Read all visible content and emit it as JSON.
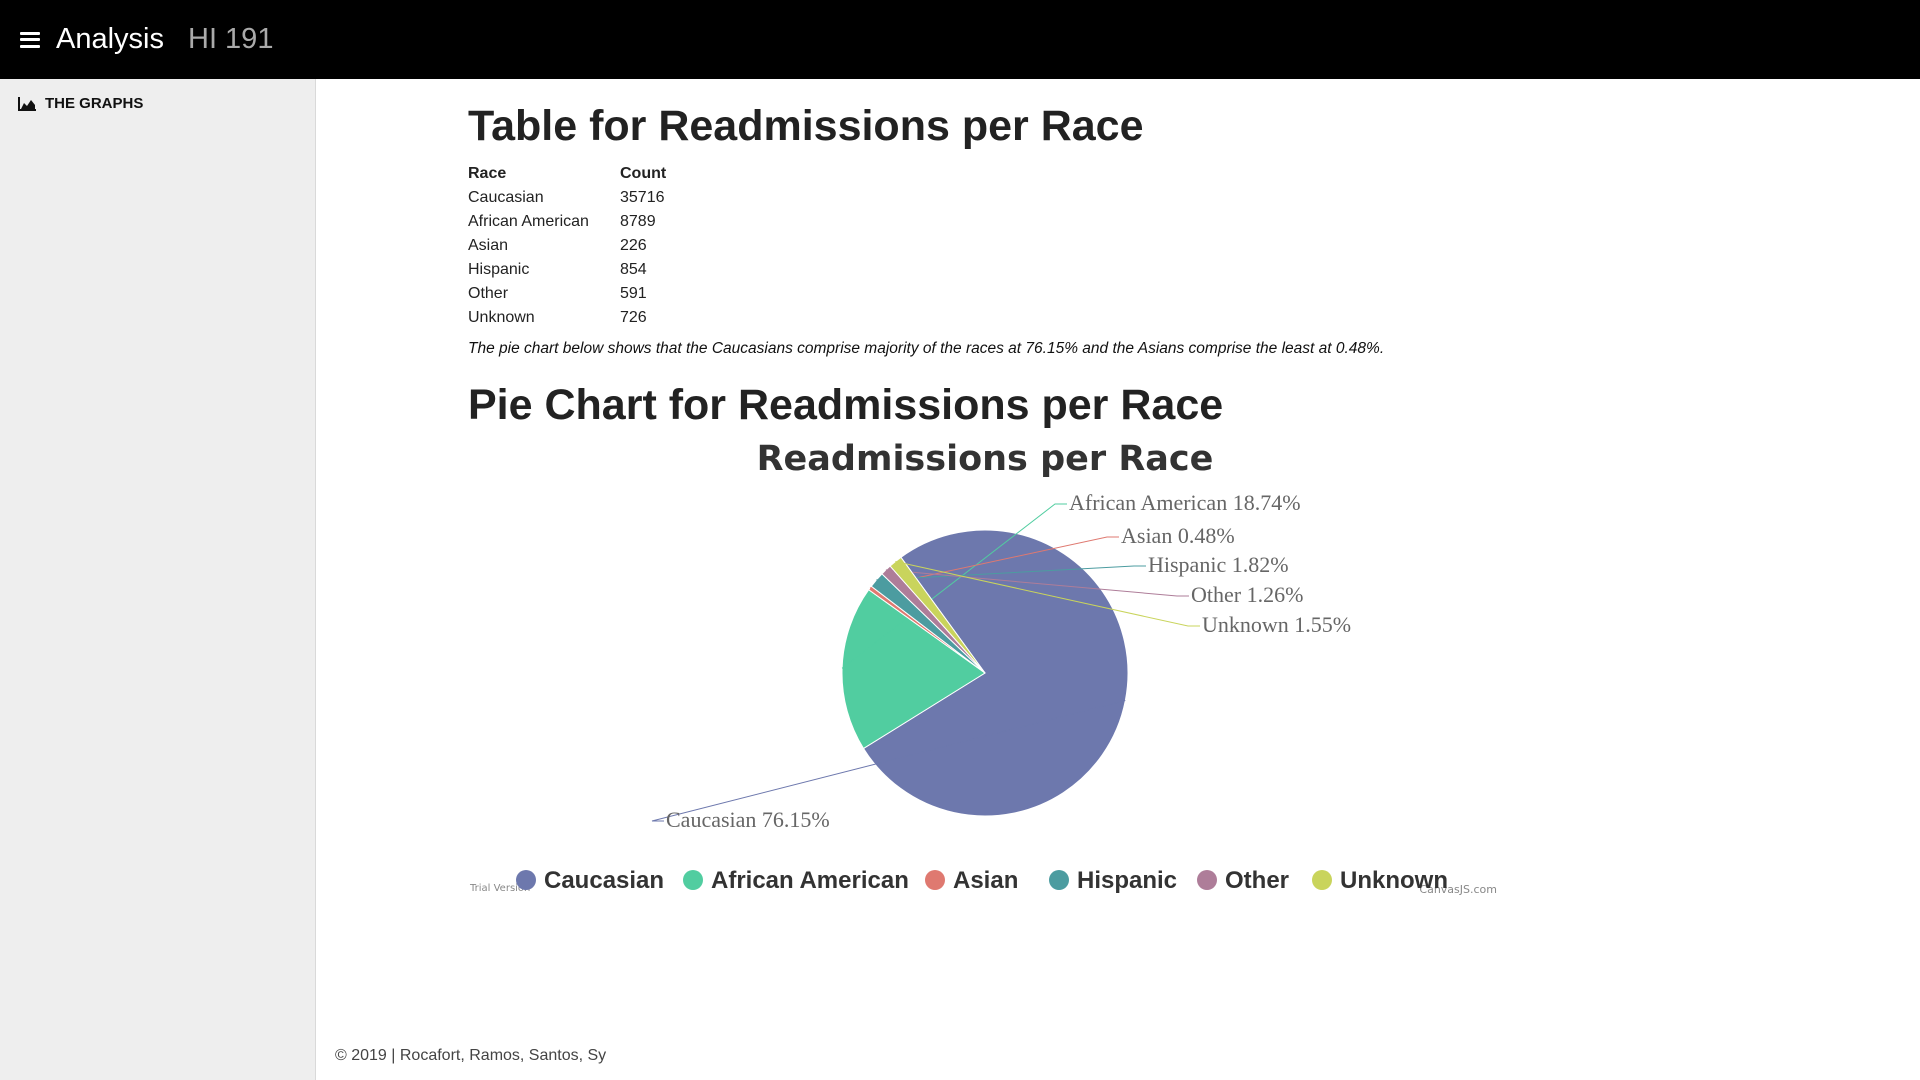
{
  "header": {
    "title": "Analysis",
    "subtitle": "HI 191"
  },
  "sidebar": {
    "items": [
      {
        "label": "THE GRAPHS",
        "icon": "area-chart-icon"
      }
    ]
  },
  "main": {
    "table_heading": "Table for Readmissions per Race",
    "table": {
      "headers": [
        "Race",
        "Count"
      ],
      "rows": [
        [
          "Caucasian",
          "35716"
        ],
        [
          "African American",
          "8789"
        ],
        [
          "Asian",
          "226"
        ],
        [
          "Hispanic",
          "854"
        ],
        [
          "Other",
          "591"
        ],
        [
          "Unknown",
          "726"
        ]
      ]
    },
    "note": "The pie chart below shows that the Caucasians comprise majority of the races at 76.15% and the Asians comprise the least at 0.48%.",
    "chart_heading": "Pie Chart for Readmissions per Race"
  },
  "chart_data": {
    "type": "pie",
    "title": "Readmissions per Race",
    "categories": [
      "Caucasian",
      "African American",
      "Asian",
      "Hispanic",
      "Other",
      "Unknown"
    ],
    "values": [
      76.15,
      18.74,
      0.48,
      1.82,
      1.26,
      1.55
    ],
    "labels": [
      "Caucasian 76.15%",
      "African American 18.74%",
      "Asian 0.48%",
      "Hispanic 1.82%",
      "Other 1.26%",
      "Unknown 1.55%"
    ],
    "colors": [
      "#6d78ad",
      "#51cda0",
      "#df7970",
      "#4c9ca0",
      "#ae7d99",
      "#c9d45c"
    ],
    "legend_position": "bottom",
    "watermark_left": "Trial Version",
    "watermark_right": "CanvasJS.com"
  },
  "footer": {
    "text": "© 2019 | Rocafort, Ramos, Santos, Sy"
  }
}
